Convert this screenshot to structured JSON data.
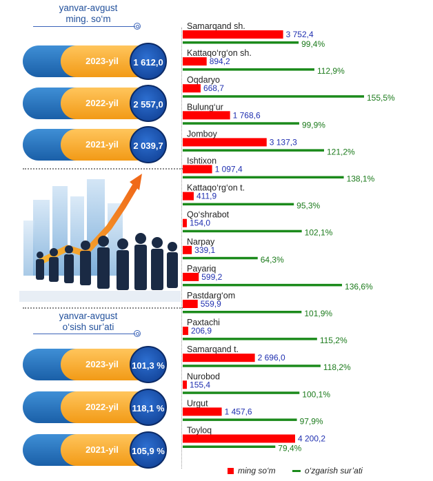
{
  "left_panel": {
    "header_top": {
      "line1": "yanvar-avgust",
      "line2": "ming. so‘m"
    },
    "amounts": [
      {
        "year": "2023-yil",
        "value": "1 612,0"
      },
      {
        "year": "2022-yil",
        "value": "2 557,0"
      },
      {
        "year": "2021-yil",
        "value": "2 039,7"
      }
    ],
    "header_bottom": {
      "line1": "yanvar-avgust",
      "line2": "o‘sish sur’ati"
    },
    "growth": [
      {
        "year": "2023-yil",
        "value": "101,3 %"
      },
      {
        "year": "2022-yil",
        "value": "118,1 %"
      },
      {
        "year": "2021-yil",
        "value": "105,9 %"
      }
    ]
  },
  "colors": {
    "red": "#ff0000",
    "green": "#1b8a1b",
    "red_label": "#1f2fb0",
    "green_label": "#1b7a1b",
    "pill_blue": "#1a5fa8",
    "pill_orange": "#f29a16",
    "circle_blue": "#0d3a8c"
  },
  "chart_data": {
    "type": "bar",
    "orientation": "horizontal",
    "categories": [
      "Samarqand sh.",
      "Kattaqo‘rg‘on sh.",
      "Oqdaryo",
      "Bulung‘ur",
      "Jomboy",
      "Ishtixon",
      "Kattaqo‘rg‘on t.",
      "Qo‘shrabot",
      "Narpay",
      "Payariq",
      "Pastdarg‘om",
      "Paxtachi",
      "Samarqand t.",
      "Nurobod",
      "Urgut",
      "Toyloq"
    ],
    "series": [
      {
        "name": "ming so‘m",
        "values": [
          3752.4,
          894.2,
          668.7,
          1768.6,
          3137.3,
          1097.4,
          411.9,
          154.0,
          339.1,
          599.2,
          559.9,
          206.9,
          2696.0,
          155.4,
          1457.6,
          4200.2
        ],
        "labels": [
          "3 752,4",
          "894,2",
          "668,7",
          "1 768,6",
          "3 137,3",
          "1 097,4",
          "411,9",
          "154,0",
          "339,1",
          "599,2",
          "559,9",
          "206,9",
          "2 696,0",
          "155,4",
          "1 457,6",
          "4 200,2"
        ]
      },
      {
        "name": "o‘zgarish sur’ati",
        "values": [
          99.4,
          112.9,
          155.5,
          99.9,
          121.2,
          138.1,
          95.3,
          102.1,
          64.3,
          136.6,
          101.9,
          115.2,
          118.2,
          100.1,
          97.9,
          79.4
        ],
        "labels": [
          "99,4%",
          "112,9%",
          "155,5%",
          "99,9%",
          "121,2%",
          "138,1%",
          "95,3%",
          "102,1%",
          "64,3%",
          "136,6%",
          "101,9%",
          "115,2%",
          "118,2%",
          "100,1%",
          "97,9%",
          "79,4%"
        ]
      }
    ],
    "legend": {
      "placement": "bottom",
      "items": [
        "ming so‘m",
        "o‘zgarish sur’ati"
      ]
    }
  }
}
